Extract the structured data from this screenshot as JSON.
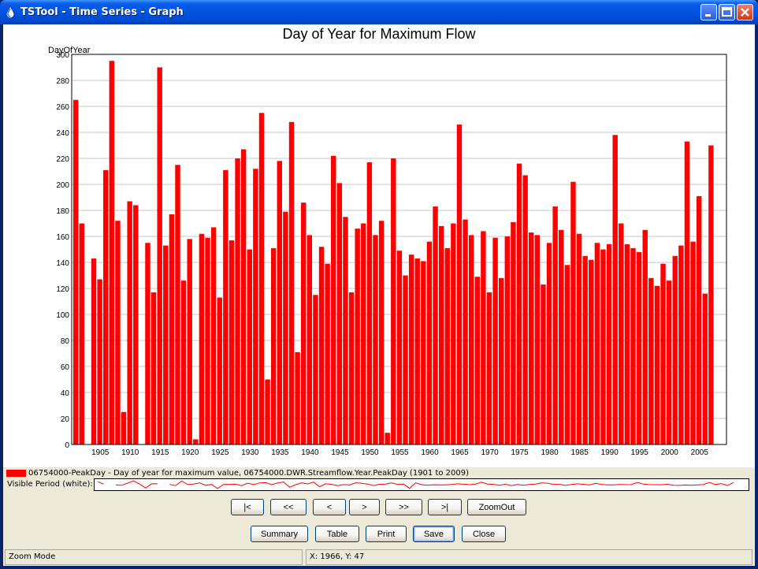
{
  "window": {
    "title": "TSTool - Time Series - Graph"
  },
  "chart_data": {
    "type": "bar",
    "title": "Day of Year for Maximum Flow",
    "ylabel": "DayOfYear",
    "xlabel": "",
    "ylim": [
      0,
      300
    ],
    "yticks": [
      0,
      20,
      40,
      60,
      80,
      100,
      120,
      140,
      160,
      180,
      200,
      220,
      240,
      260,
      280,
      300
    ],
    "xticks": [
      1905,
      1910,
      1915,
      1920,
      1925,
      1930,
      1935,
      1940,
      1945,
      1950,
      1955,
      1960,
      1965,
      1970,
      1975,
      1980,
      1985,
      1990,
      1995,
      2000,
      2005
    ],
    "grid": true,
    "color": "#ff0000",
    "series": [
      {
        "name": "06754000-PeakDay - Day of year for maximum value, 06754000.DWR.Streamflow.Year.PeakDay (1901 to 2009)",
        "years": [
          1901,
          1902,
          1903,
          1904,
          1905,
          1906,
          1907,
          1908,
          1909,
          1910,
          1911,
          1912,
          1913,
          1914,
          1915,
          1916,
          1917,
          1918,
          1919,
          1920,
          1921,
          1922,
          1923,
          1924,
          1925,
          1926,
          1927,
          1928,
          1929,
          1930,
          1931,
          1932,
          1933,
          1934,
          1935,
          1936,
          1937,
          1938,
          1939,
          1940,
          1941,
          1942,
          1943,
          1944,
          1945,
          1946,
          1947,
          1948,
          1949,
          1950,
          1951,
          1952,
          1953,
          1954,
          1955,
          1956,
          1957,
          1958,
          1959,
          1960,
          1961,
          1962,
          1963,
          1964,
          1965,
          1966,
          1967,
          1968,
          1969,
          1970,
          1971,
          1972,
          1973,
          1974,
          1975,
          1976,
          1977,
          1978,
          1979,
          1980,
          1981,
          1982,
          1983,
          1984,
          1985,
          1986,
          1987,
          1988,
          1989,
          1990,
          1991,
          1992,
          1993,
          1994,
          1995,
          1996,
          1997,
          1998,
          1999,
          2000,
          2001,
          2002,
          2003,
          2004,
          2005,
          2006,
          2007,
          2008,
          2009
        ],
        "values": [
          265,
          170,
          null,
          143,
          127,
          211,
          295,
          172,
          25,
          187,
          184,
          null,
          155,
          117,
          290,
          153,
          177,
          215,
          126,
          158,
          4,
          162,
          159,
          167,
          113,
          211,
          157,
          220,
          227,
          150,
          212,
          255,
          50,
          151,
          218,
          179,
          248,
          71,
          186,
          161,
          115,
          152,
          139,
          222,
          201,
          175,
          117,
          166,
          170,
          217,
          161,
          172,
          9,
          220,
          149,
          130,
          146,
          143,
          141,
          156,
          183,
          168,
          151,
          170,
          246,
          173,
          161,
          129,
          164,
          117,
          159,
          128,
          160,
          171,
          216,
          207,
          163,
          161,
          123,
          155,
          183,
          165,
          138,
          202,
          162,
          145,
          142,
          155,
          150,
          154,
          238,
          170,
          154,
          151,
          148,
          165,
          128,
          122,
          139,
          126,
          145,
          153,
          233,
          156,
          191,
          116,
          230,
          null,
          null
        ]
      }
    ]
  },
  "visible_period_label": "Visible Period (white):",
  "nav_buttons": {
    "first": "|<",
    "prev_page": "<<",
    "prev": "<",
    "next": ">",
    "next_page": ">>",
    "last": ">|",
    "zoom_out": "ZoomOut"
  },
  "action_buttons": {
    "summary": "Summary",
    "table": "Table",
    "print": "Print",
    "save": "Save",
    "close": "Close"
  },
  "status": {
    "mode": "Zoom Mode",
    "coords": "X: 1966, Y: 47"
  }
}
